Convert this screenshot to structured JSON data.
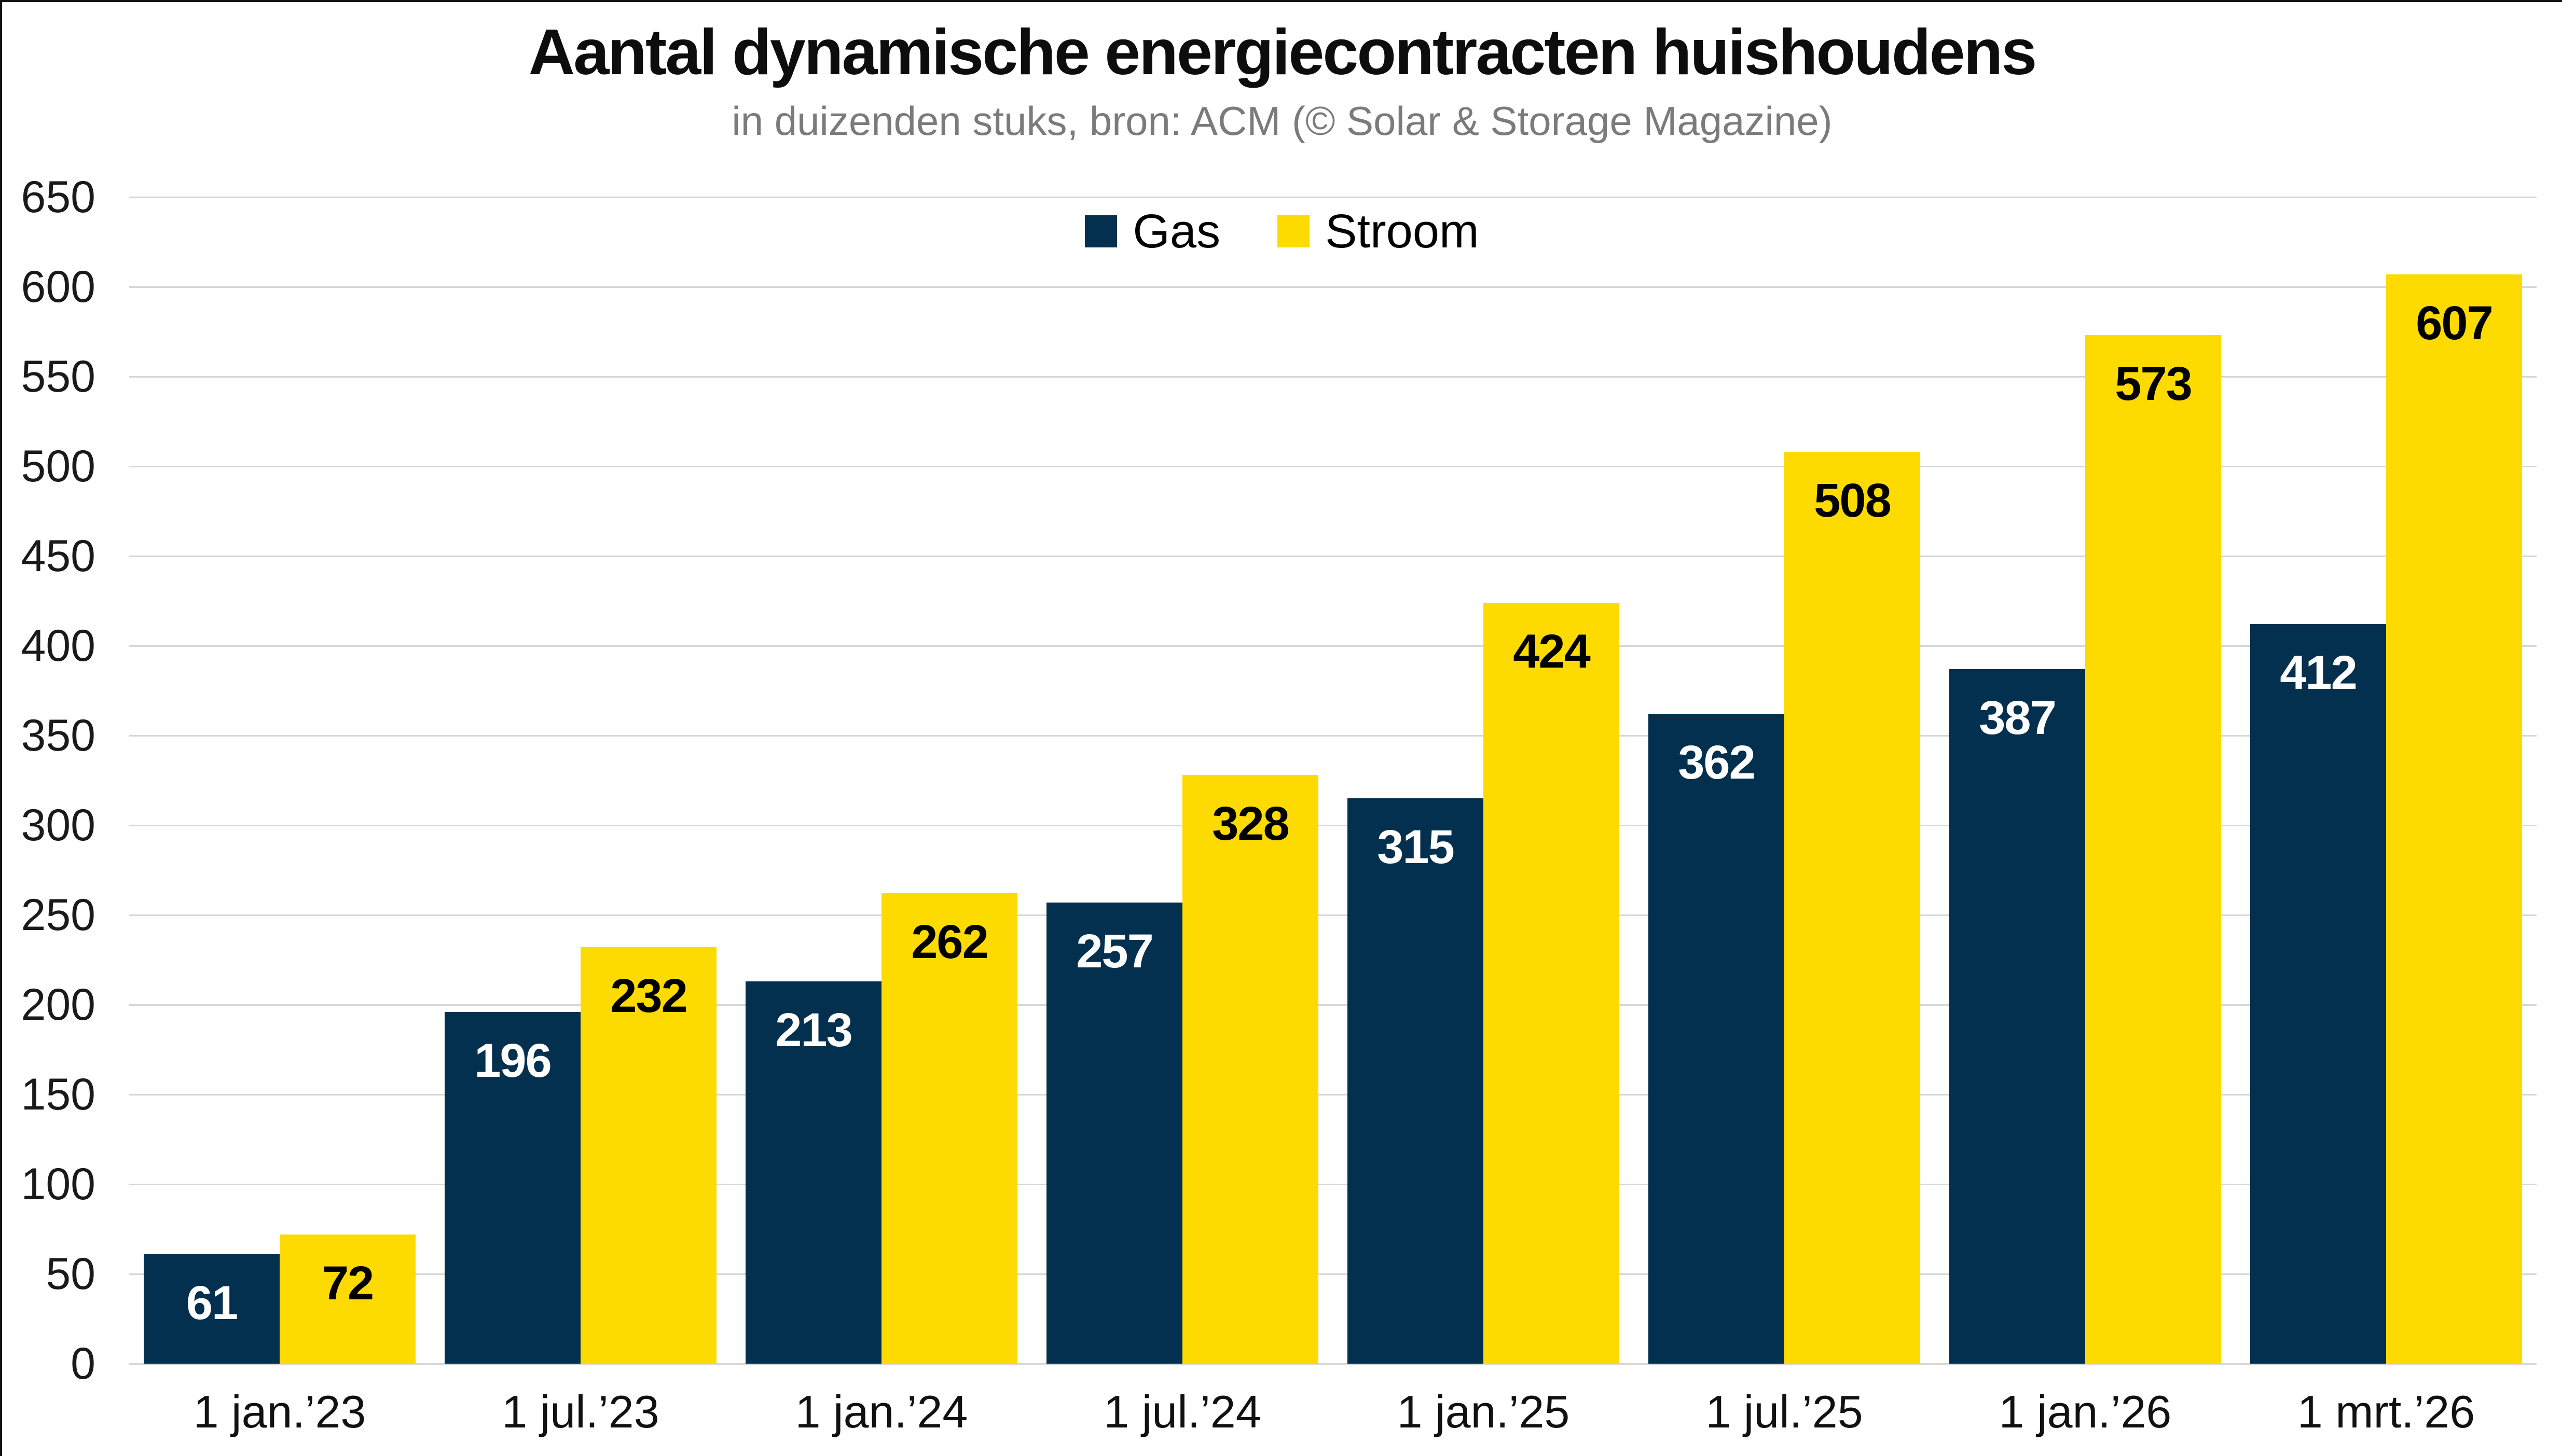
{
  "chart_data": {
    "type": "bar",
    "title": "Aantal dynamische energiecontracten huishoudens",
    "subtitle": "in duizenden stuks, bron: ACM (© Solar & Storage Magazine)",
    "categories": [
      "1 jan.’23",
      "1 jul.’23",
      "1 jan.’24",
      "1 jul.’24",
      "1 jan.’25",
      "1 jul.’25",
      "1 jan.’26",
      "1 mrt.’26"
    ],
    "series": [
      {
        "name": "Gas",
        "color": "#04304F",
        "value_label_color": "#ffffff",
        "values": [
          61,
          196,
          213,
          257,
          315,
          362,
          387,
          412
        ]
      },
      {
        "name": "Stroom",
        "color": "#FDDA00",
        "value_label_color": "#000000",
        "values": [
          72,
          232,
          262,
          328,
          424,
          508,
          573,
          607
        ]
      }
    ],
    "ylim": [
      0,
      650
    ],
    "ytick_step": 50,
    "ytick_labels": [
      "0",
      "50",
      "100",
      "150",
      "200",
      "250",
      "300",
      "350",
      "400",
      "450",
      "500",
      "550",
      "600",
      "650"
    ],
    "grid": true,
    "legend_position": "top-center",
    "gridline_color": "#d6d6d6",
    "background_color": "#ffffff"
  }
}
